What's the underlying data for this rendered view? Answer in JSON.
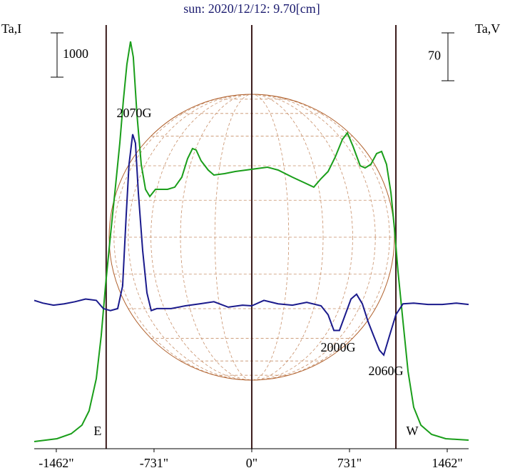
{
  "chart_data": {
    "type": "line",
    "title": "sun: 2020/12/12: 9.70[cm]",
    "y_label": "Ta,I",
    "y2_label": "Ta,V",
    "y_scale_bar": 1000,
    "y2_scale_bar": 70,
    "xlim": [
      -1627,
      1622
    ],
    "ylim": [
      0,
      9645
    ],
    "y2lim": [
      -212,
      413
    ],
    "xticks": [
      {
        "value": -1462,
        "label": "-1462\""
      },
      {
        "value": -731,
        "label": "-731\""
      },
      {
        "value": 0,
        "label": "0\""
      },
      {
        "value": 731,
        "label": "731\""
      },
      {
        "value": 1462,
        "label": "1462\""
      }
    ],
    "markers": [
      {
        "x": -1089,
        "label": "E"
      },
      {
        "x": 0
      },
      {
        "x": 1078,
        "label": "W"
      }
    ],
    "annotations": [
      "2070G",
      "2000G",
      "2060G"
    ],
    "series": [
      {
        "name": "I",
        "color": "#1a9e1a",
        "x": [
          -1627,
          -1457,
          -1350,
          -1270,
          -1217,
          -1163,
          -1126,
          -1094,
          -1057,
          -1019,
          -987,
          -960,
          -934,
          -907,
          -886,
          -859,
          -827,
          -795,
          -763,
          -720,
          -630,
          -576,
          -523,
          -480,
          -443,
          -416,
          -379,
          -326,
          -283,
          -203,
          -123,
          -43,
          37,
          117,
          197,
          304,
          384,
          464,
          518,
          571,
          624,
          678,
          715,
          758,
          811,
          848,
          891,
          934,
          971,
          1008,
          1041,
          1067,
          1094,
          1131,
          1169,
          1211,
          1265,
          1345,
          1451,
          1622
        ],
        "values": [
          161,
          226,
          339,
          532,
          855,
          1581,
          2549,
          3678,
          4807,
          5936,
          6904,
          7871,
          8678,
          9194,
          8839,
          7549,
          6420,
          5855,
          5694,
          5855,
          5855,
          5904,
          6129,
          6549,
          6775,
          6742,
          6500,
          6291,
          6178,
          6210,
          6258,
          6291,
          6323,
          6355,
          6291,
          6129,
          6017,
          5904,
          6097,
          6258,
          6581,
          6984,
          7129,
          6823,
          6387,
          6339,
          6420,
          6662,
          6710,
          6420,
          5775,
          4968,
          4000,
          2871,
          1742,
          936,
          532,
          323,
          226,
          194
        ]
      },
      {
        "name": "V",
        "color": "#1a1a8c",
        "axis": "y2",
        "x": [
          -1627,
          -1563,
          -1483,
          -1403,
          -1323,
          -1243,
          -1163,
          -1110,
          -1057,
          -1003,
          -966,
          -939,
          -918,
          -891,
          -870,
          -848,
          -816,
          -784,
          -752,
          -710,
          -603,
          -496,
          -390,
          -283,
          -176,
          -69,
          0,
          91,
          197,
          304,
          411,
          518,
          571,
          614,
          656,
          699,
          742,
          784,
          827,
          870,
          912,
          955,
          987,
          1030,
          1078,
          1131,
          1211,
          1318,
          1425,
          1531,
          1622
        ],
        "values": [
          5,
          1,
          -2,
          0,
          3,
          7,
          5,
          -7,
          -10,
          -7,
          26,
          131,
          204,
          248,
          235,
          162,
          78,
          16,
          -10,
          -7,
          -7,
          -3,
          0,
          3,
          -5,
          -2,
          -3,
          5,
          0,
          -2,
          2,
          -3,
          -16,
          -39,
          -39,
          -16,
          7,
          14,
          0,
          -26,
          -47,
          -68,
          -75,
          -47,
          -16,
          0,
          1,
          -1,
          -1,
          1,
          -1
        ]
      }
    ]
  }
}
